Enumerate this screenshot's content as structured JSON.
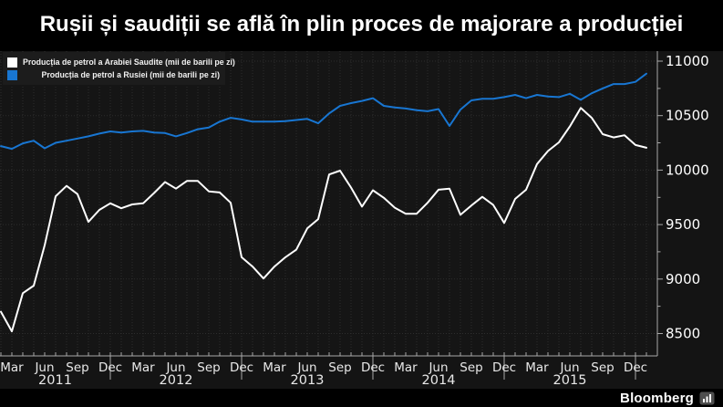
{
  "title": "Rușii și saudiții se află în plin proces de majorare a producției",
  "legend": [
    {
      "label": "Producția de petrol a Arabiei Saudite (mii de barili pe zi)",
      "color": "#ffffff"
    },
    {
      "label": "Producția de petrol a Rusiei (mii de barili pe zi)",
      "color": "#1876d2"
    }
  ],
  "footer": {
    "brand": "Bloomberg"
  },
  "chart_data": {
    "type": "line",
    "title": "Rușii și saudiții se află în plin proces de majorare a producției",
    "unit": "mii de barili pe zi",
    "x_start": "2011-02",
    "x_end": "2016-01",
    "frequency": "monthly",
    "start_month_index": 1,
    "grid": true,
    "legend_position": "top-left",
    "y_axis_side": "right",
    "ylim": [
      8500,
      11000
    ],
    "y_ticks": [
      8500,
      9000,
      9500,
      10000,
      10500,
      11000
    ],
    "y_minor_step": 250,
    "x_axis": {
      "month_tick_labels": [
        "Mar",
        "Jun",
        "Sep",
        "Dec"
      ],
      "month_positions": [
        2,
        5,
        8,
        11
      ],
      "years": [
        "2011",
        "2012",
        "2013",
        "2014",
        "2015"
      ]
    },
    "series": [
      {
        "id": "saudi-production",
        "name": "Producția de petrol a Arabiei Saudite",
        "color": "#ffffff",
        "values": [
          8700,
          8520,
          8870,
          8940,
          9310,
          9760,
          9855,
          9780,
          9525,
          9635,
          9695,
          9650,
          9685,
          9695,
          9790,
          9890,
          9830,
          9900,
          9900,
          9805,
          9795,
          9700,
          9200,
          9115,
          9005,
          9115,
          9200,
          9270,
          9465,
          9550,
          9960,
          9995,
          9840,
          9665,
          9815,
          9745,
          9655,
          9600,
          9600,
          9700,
          9820,
          9830,
          9590,
          9675,
          9755,
          9680,
          9515,
          9735,
          9820,
          10055,
          10175,
          10255,
          10400,
          10570,
          10480,
          10330,
          10300,
          10320,
          10230,
          10205
        ]
      },
      {
        "id": "russia-production",
        "name": "Producția de petrol a Rusiei",
        "color": "#1876d2",
        "values": [
          10220,
          10195,
          10245,
          10270,
          10200,
          10250,
          10270,
          10290,
          10310,
          10335,
          10355,
          10345,
          10355,
          10360,
          10345,
          10340,
          10310,
          10340,
          10375,
          10390,
          10445,
          10480,
          10465,
          10445,
          10445,
          10445,
          10450,
          10460,
          10470,
          10430,
          10520,
          10590,
          10615,
          10635,
          10660,
          10590,
          10575,
          10565,
          10550,
          10540,
          10560,
          10405,
          10555,
          10640,
          10655,
          10655,
          10670,
          10690,
          10660,
          10690,
          10675,
          10670,
          10700,
          10645,
          10705,
          10750,
          10790,
          10790,
          10810,
          10885
        ]
      }
    ]
  }
}
